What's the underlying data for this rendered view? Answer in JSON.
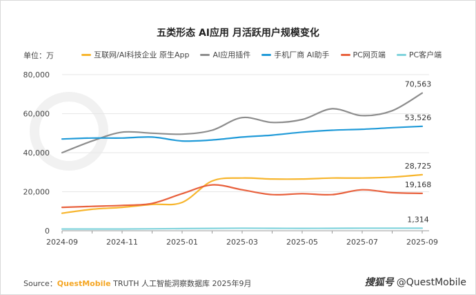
{
  "chart_data": {
    "type": "line",
    "title": "五类形态 AI应用 月活跃用户规模变化",
    "unit_label": "单位：万",
    "ylim": [
      0,
      80000
    ],
    "yticks": [
      0,
      20000,
      40000,
      60000,
      80000
    ],
    "ytick_labels": [
      "0",
      "20,000",
      "40,000",
      "60,000",
      "80,000"
    ],
    "x": [
      "2024-09",
      "2024-10",
      "2024-11",
      "2024-12",
      "2025-01",
      "2025-02",
      "2025-03",
      "2025-04",
      "2025-05",
      "2025-06",
      "2025-07",
      "2025-08",
      "2025-09"
    ],
    "xtick_labels": [
      "2024-09",
      "",
      "2024-11",
      "",
      "2025-01",
      "",
      "2025-03",
      "",
      "2025-05",
      "",
      "2025-07",
      "",
      "2025-09"
    ],
    "grid": "horizontal",
    "legend_position": "top",
    "series": [
      {
        "name": "互联网/AI科技企业 原生App",
        "color": "#f7b52c",
        "values": [
          9000,
          11000,
          12000,
          13500,
          14500,
          25500,
          27000,
          26500,
          26500,
          27000,
          27000,
          27500,
          28725
        ],
        "end_label": "28,725"
      },
      {
        "name": "AI应用插件",
        "color": "#8c8c8c",
        "values": [
          40000,
          46000,
          50500,
          50000,
          49500,
          51500,
          58000,
          55500,
          57000,
          62500,
          59000,
          61500,
          70563
        ],
        "end_label": "70,563"
      },
      {
        "name": "手机厂商 AI助手",
        "color": "#1f9ad8",
        "values": [
          47000,
          47500,
          47500,
          48000,
          46000,
          46500,
          48000,
          49000,
          50500,
          51500,
          52000,
          52800,
          53526
        ],
        "end_label": "53,526"
      },
      {
        "name": "PC网页端",
        "color": "#e8603c",
        "values": [
          12000,
          12500,
          13000,
          14000,
          19000,
          23500,
          21000,
          18500,
          19000,
          18500,
          21000,
          19500,
          19168
        ],
        "end_label": "19,168"
      },
      {
        "name": "PC客户端",
        "color": "#7fd3dc",
        "values": [
          900,
          900,
          900,
          1000,
          1100,
          1200,
          1300,
          1250,
          1200,
          1250,
          1300,
          1300,
          1314
        ],
        "end_label": "1,314"
      }
    ]
  },
  "source": {
    "prefix": "Source：",
    "brand": "QuestMobile",
    "text": " TRUTH 人工智能洞察数据库 2025年9月"
  },
  "credit": {
    "site": "搜狐号",
    "handle": "@QuestMobile"
  }
}
